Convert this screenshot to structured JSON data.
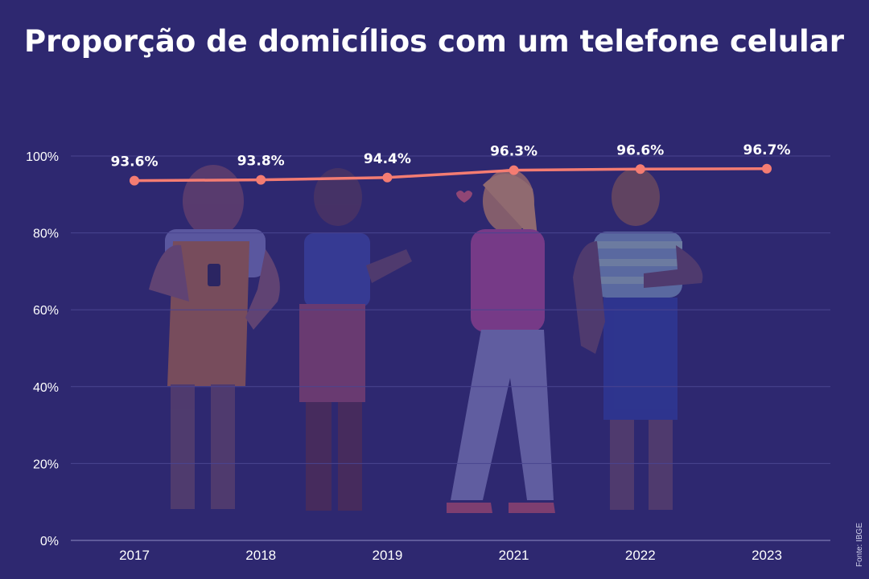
{
  "chart_data": {
    "type": "line",
    "title": "Proporção de domicílios com um telefone celular",
    "categories": [
      "2017",
      "2018",
      "2019",
      "2021",
      "2022",
      "2023"
    ],
    "series": [
      {
        "values": [
          93.6,
          93.8,
          94.4,
          96.3,
          96.6,
          96.7
        ],
        "labels": [
          "93.6%",
          "93.8%",
          "94.4%",
          "96.3%",
          "96.6%",
          "96.7%"
        ],
        "color": "#f47c72"
      }
    ],
    "ylim": [
      0,
      100
    ],
    "yticks": [
      0,
      20,
      40,
      60,
      80,
      100
    ],
    "ytick_labels": [
      "0%",
      "20%",
      "40%",
      "60%",
      "80%",
      "100%"
    ],
    "grid": true,
    "xlabel": "",
    "ylabel": ""
  },
  "source": "Fonte: IBGE",
  "colors": {
    "background": "#2e2870",
    "gridline": "#4a4590",
    "illustration_fill": "#4b3f8c"
  }
}
